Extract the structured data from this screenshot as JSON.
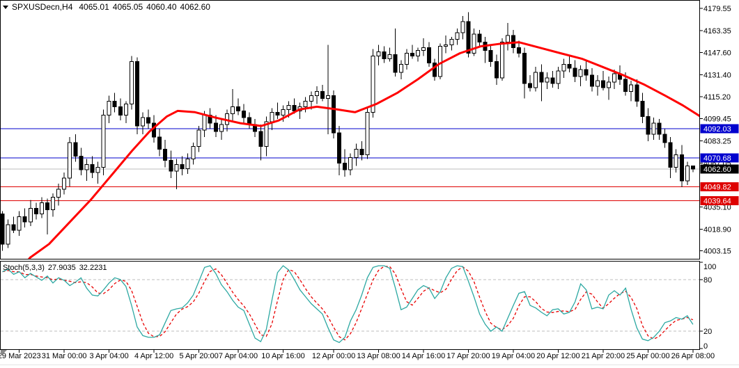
{
  "header": {
    "symbol_period": "SPXUSDecn,H4",
    "open": "4065.01",
    "high": "4065.05",
    "low": "4060.40",
    "close": "4062.60"
  },
  "colors": {
    "up_body": "#FFFFFF",
    "down_body": "#000000",
    "candle_outline": "#000000",
    "ma": "#FF0000",
    "stoch_k": "#2CA8A2",
    "stoch_d": "#E80000",
    "level_blue": "#0202CE",
    "level_red": "#DE0000",
    "current_line": "#BDBDBD",
    "current_tag_bg": "#000000",
    "tag_text": "#FFFFFF",
    "grid_dash": "#BDBDBD",
    "border": "#000000",
    "grip": "#8A8A8A"
  },
  "chart_data": {
    "type": "candlestick",
    "symbol": "SPXUSDecn",
    "timeframe": "H4",
    "title": "SPXUSDecn,H4 4065.01 4065.05 4060.40 4062.60",
    "current_bar": {
      "open": 4065.01,
      "high": 4065.05,
      "low": 4060.4,
      "close": 4062.6
    },
    "y_axis": {
      "range": [
        3997.0,
        4185.5
      ],
      "ticks": [
        "4179.55",
        "4163.35",
        "4147.60",
        "4131.40",
        "4115.20",
        "4099.45",
        "4083.25",
        "4067.05",
        "4035.10",
        "4018.90",
        "4003.15"
      ]
    },
    "x_axis": {
      "labels": [
        {
          "bar": 3,
          "text": "29 Mar 2023"
        },
        {
          "bar": 11,
          "text": "31 Mar 00:00"
        },
        {
          "bar": 19,
          "text": "3 Apr 04:00"
        },
        {
          "bar": 27,
          "text": "4 Apr 12:00"
        },
        {
          "bar": 35,
          "text": "5 Apr 20:00"
        },
        {
          "bar": 42,
          "text": "7 Apr 04:00"
        },
        {
          "bar": 50,
          "text": "10 Apr 16:00"
        },
        {
          "bar": 59,
          "text": "12 Apr 00:00"
        },
        {
          "bar": 67,
          "text": "13 Apr 08:00"
        },
        {
          "bar": 75,
          "text": "14 Apr 16:00"
        },
        {
          "bar": 83,
          "text": "17 Apr 20:00"
        },
        {
          "bar": 91,
          "text": "19 Apr 04:00"
        },
        {
          "bar": 99,
          "text": "20 Apr 12:00"
        },
        {
          "bar": 107,
          "text": "21 Apr 20:00"
        },
        {
          "bar": 115,
          "text": "25 Apr 00:00"
        },
        {
          "bar": 123,
          "text": "26 Apr 08:00"
        }
      ]
    },
    "levels": [
      {
        "price": 4092.03,
        "label": "4092.03",
        "line_color": "#0202CE",
        "tag_bg": "#0202CE"
      },
      {
        "price": 4070.68,
        "label": "4070.68",
        "line_color": "#0202CE",
        "tag_bg": "#0202CE"
      },
      {
        "price": 4062.6,
        "label": "4062.60",
        "line_color": "#BDBDBD",
        "tag_bg": "#000000",
        "current": true
      },
      {
        "price": 4049.82,
        "label": "4049.82",
        "line_color": "#DE0000",
        "tag_bg": "#DE0000"
      },
      {
        "price": 4039.64,
        "label": "4039.64",
        "line_color": "#DE0000",
        "tag_bg": "#DE0000"
      }
    ],
    "moving_average": {
      "color": "#FF0000",
      "points": [
        [
          3.8,
          3992
        ],
        [
          4.9,
          3998
        ],
        [
          8.3,
          4008
        ],
        [
          12,
          4024
        ],
        [
          15.7,
          4040
        ],
        [
          19.4,
          4058
        ],
        [
          23.1,
          4076
        ],
        [
          26.2,
          4090
        ],
        [
          29.3,
          4101
        ],
        [
          31.2,
          4105
        ],
        [
          34.3,
          4104
        ],
        [
          38,
          4100
        ],
        [
          42.4,
          4096
        ],
        [
          46.1,
          4094
        ],
        [
          49.2,
          4098
        ],
        [
          52.9,
          4106
        ],
        [
          56,
          4108
        ],
        [
          59.7,
          4106
        ],
        [
          62.8,
          4104
        ],
        [
          66.6,
          4110
        ],
        [
          70.3,
          4118
        ],
        [
          74,
          4128
        ],
        [
          77.7,
          4139
        ],
        [
          81.5,
          4147
        ],
        [
          85.2,
          4152
        ],
        [
          88.9,
          4154
        ],
        [
          92,
          4155
        ],
        [
          95.7,
          4151
        ],
        [
          99.4,
          4147
        ],
        [
          103.2,
          4143
        ],
        [
          106.9,
          4137
        ],
        [
          110.6,
          4131
        ],
        [
          114.4,
          4124
        ],
        [
          118.1,
          4116
        ],
        [
          121.2,
          4109
        ],
        [
          124.3,
          4101
        ]
      ]
    },
    "candles": [
      [
        4030,
        4032,
        4003,
        4008
      ],
      [
        4008,
        4026,
        4005,
        4022
      ],
      [
        4022,
        4028,
        4016,
        4018
      ],
      [
        4018,
        4032,
        4014,
        4028
      ],
      [
        4028,
        4034,
        4020,
        4024
      ],
      [
        4024,
        4040,
        4021,
        4034
      ],
      [
        4034,
        4038,
        4026,
        4030
      ],
      [
        4030,
        4042,
        4027,
        4038
      ],
      [
        4038,
        4041,
        4015,
        4033
      ],
      [
        4033,
        4045,
        4028,
        4042
      ],
      [
        4042,
        4052,
        4036,
        4048
      ],
      [
        4048,
        4060,
        4044,
        4056
      ],
      [
        4056,
        4086,
        4050,
        4082
      ],
      [
        4082,
        4088,
        4068,
        4072
      ],
      [
        4072,
        4078,
        4058,
        4062
      ],
      [
        4062,
        4070,
        4054,
        4066
      ],
      [
        4066,
        4072,
        4056,
        4060
      ],
      [
        4060,
        4068,
        4052,
        4064
      ],
      [
        4064,
        4106,
        4058,
        4102
      ],
      [
        4102,
        4116,
        4096,
        4112
      ],
      [
        4112,
        4118,
        4104,
        4108
      ],
      [
        4108,
        4114,
        4098,
        4102
      ],
      [
        4102,
        4112,
        4096,
        4110
      ],
      [
        4110,
        4145,
        4106,
        4141
      ],
      [
        4141,
        4144,
        4088,
        4094
      ],
      [
        4094,
        4104,
        4088,
        4100
      ],
      [
        4100,
        4106,
        4092,
        4096
      ],
      [
        4096,
        4102,
        4082,
        4086
      ],
      [
        4086,
        4092,
        4072,
        4077
      ],
      [
        4077,
        4084,
        4064,
        4069
      ],
      [
        4069,
        4076,
        4056,
        4061
      ],
      [
        4061,
        4070,
        4048,
        4066
      ],
      [
        4066,
        4072,
        4058,
        4063
      ],
      [
        4063,
        4074,
        4059,
        4070
      ],
      [
        4070,
        4082,
        4066,
        4079
      ],
      [
        4079,
        4094,
        4075,
        4091
      ],
      [
        4091,
        4105,
        4086,
        4102
      ],
      [
        4102,
        4107,
        4092,
        4096
      ],
      [
        4096,
        4102,
        4086,
        4090
      ],
      [
        4090,
        4099,
        4084,
        4095
      ],
      [
        4095,
        4106,
        4090,
        4103
      ],
      [
        4103,
        4121,
        4098,
        4108
      ],
      [
        4108,
        4114,
        4102,
        4105
      ],
      [
        4105,
        4110,
        4096,
        4100
      ],
      [
        4100,
        4104,
        4092,
        4095
      ],
      [
        4095,
        4099,
        4086,
        4090
      ],
      [
        4090,
        4095,
        4069,
        4079
      ],
      [
        4079,
        4101,
        4072,
        4097
      ],
      [
        4097,
        4107,
        4091,
        4104
      ],
      [
        4104,
        4111,
        4099,
        4102
      ],
      [
        4102,
        4109,
        4097,
        4106
      ],
      [
        4106,
        4112,
        4100,
        4109
      ],
      [
        4109,
        4114,
        4103,
        4105
      ],
      [
        4105,
        4111,
        4099,
        4108
      ],
      [
        4108,
        4115,
        4104,
        4112
      ],
      [
        4112,
        4119,
        4106,
        4116
      ],
      [
        4116,
        4123,
        4110,
        4119
      ],
      [
        4119,
        4124,
        4112,
        4114
      ],
      [
        4114,
        4153,
        4088,
        4116
      ],
      [
        4116,
        4120,
        4085,
        4089
      ],
      [
        4089,
        4094,
        4058,
        4067
      ],
      [
        4067,
        4077,
        4057,
        4062
      ],
      [
        4062,
        4074,
        4058,
        4071
      ],
      [
        4071,
        4081,
        4065,
        4077
      ],
      [
        4077,
        4083,
        4069,
        4073
      ],
      [
        4073,
        4107,
        4070,
        4104
      ],
      [
        4104,
        4150,
        4100,
        4145
      ],
      [
        4145,
        4153,
        4138,
        4148
      ],
      [
        4148,
        4152,
        4140,
        4143
      ],
      [
        4143,
        4151,
        4141,
        4146
      ],
      [
        4146,
        4165,
        4130,
        4133
      ],
      [
        4133,
        4142,
        4128,
        4139
      ],
      [
        4139,
        4150,
        4135,
        4147
      ],
      [
        4147,
        4153,
        4143,
        4145
      ],
      [
        4145,
        4151,
        4141,
        4149
      ],
      [
        4149,
        4158,
        4145,
        4151
      ],
      [
        4151,
        4155,
        4137,
        4140
      ],
      [
        4140,
        4143,
        4127,
        4130
      ],
      [
        4130,
        4154,
        4128,
        4152
      ],
      [
        4152,
        4160,
        4147,
        4153
      ],
      [
        4153,
        4159,
        4149,
        4157
      ],
      [
        4157,
        4165,
        4153,
        4162
      ],
      [
        4162,
        4174,
        4157,
        4170
      ],
      [
        4170,
        4177,
        4144,
        4147
      ],
      [
        4147,
        4165,
        4145,
        4161
      ],
      [
        4161,
        4164,
        4151,
        4155
      ],
      [
        4155,
        4159,
        4140,
        4149
      ],
      [
        4149,
        4153,
        4137,
        4141
      ],
      [
        4141,
        4146,
        4124,
        4129
      ],
      [
        4129,
        4158,
        4127,
        4155
      ],
      [
        4155,
        4169,
        4149,
        4160
      ],
      [
        4160,
        4164,
        4147,
        4151
      ],
      [
        4151,
        4156,
        4144,
        4147
      ],
      [
        4147,
        4151,
        4114,
        4125
      ],
      [
        4125,
        4131,
        4119,
        4122
      ],
      [
        4122,
        4137,
        4119,
        4133
      ],
      [
        4133,
        4139,
        4112,
        4126
      ],
      [
        4126,
        4133,
        4121,
        4129
      ],
      [
        4129,
        4134,
        4122,
        4125
      ],
      [
        4125,
        4137,
        4121,
        4134
      ],
      [
        4134,
        4143,
        4129,
        4139
      ],
      [
        4139,
        4145,
        4133,
        4136
      ],
      [
        4136,
        4142,
        4126,
        4130
      ],
      [
        4130,
        4138,
        4123,
        4135
      ],
      [
        4135,
        4141,
        4127,
        4131
      ],
      [
        4131,
        4136,
        4119,
        4123
      ],
      [
        4123,
        4131,
        4116,
        4127
      ],
      [
        4127,
        4134,
        4120,
        4122
      ],
      [
        4122,
        4130,
        4113,
        4126
      ],
      [
        4126,
        4135,
        4121,
        4132
      ],
      [
        4132,
        4138,
        4124,
        4128
      ],
      [
        4128,
        4133,
        4116,
        4119
      ],
      [
        4119,
        4127,
        4112,
        4124
      ],
      [
        4124,
        4128,
        4108,
        4112
      ],
      [
        4112,
        4118,
        4096,
        4101
      ],
      [
        4101,
        4107,
        4083,
        4088
      ],
      [
        4088,
        4100,
        4084,
        4096
      ],
      [
        4096,
        4099,
        4084,
        4088
      ],
      [
        4088,
        4092,
        4078,
        4082
      ],
      [
        4082,
        4086,
        4056,
        4064
      ],
      [
        4064,
        4077,
        4060,
        4073
      ],
      [
        4073,
        4080,
        4049.5,
        4054
      ],
      [
        4054,
        4068,
        4051,
        4065
      ],
      [
        4065.01,
        4065.05,
        4060.4,
        4062.6
      ]
    ],
    "stochastic": {
      "label": "Stoch(5,3,3)",
      "k_value": "27.9035",
      "d_value": "32.2231",
      "range": [
        0,
        100
      ],
      "axis_ticks": [
        "100",
        "80",
        "20",
        "0"
      ],
      "dashed_levels": [
        80,
        20
      ],
      "signal_smoothing": 3,
      "k_series": [
        89,
        92,
        86,
        89,
        82,
        87,
        83,
        79,
        84,
        76,
        82,
        79,
        73,
        77,
        82,
        70,
        62,
        61,
        68,
        76,
        82,
        80,
        72,
        50,
        25,
        15,
        13,
        13,
        16,
        30,
        44,
        46,
        47,
        53,
        62,
        78,
        94,
        96,
        87,
        74,
        66,
        56,
        48,
        44,
        28,
        12,
        8,
        22,
        56,
        88,
        96,
        91,
        80,
        68,
        60,
        52,
        46,
        40,
        24,
        10,
        7,
        13,
        32,
        45,
        62,
        82,
        94,
        96,
        96,
        93,
        70,
        45,
        48,
        58,
        68,
        73,
        70,
        58,
        66,
        82,
        93,
        96,
        95,
        78,
        60,
        40,
        28,
        20,
        25,
        20,
        35,
        50,
        64,
        66,
        50,
        47,
        42,
        38,
        45,
        46,
        40,
        42,
        54,
        75,
        68,
        46,
        48,
        46,
        62,
        67,
        62,
        70,
        45,
        24,
        11,
        9,
        13,
        20,
        30,
        32,
        36,
        34,
        38,
        27.9
      ]
    }
  }
}
